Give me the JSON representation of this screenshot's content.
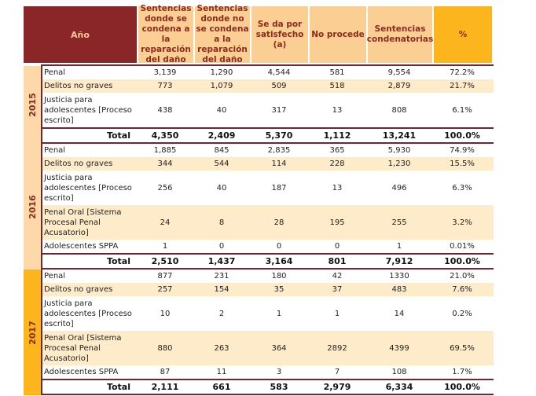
{
  "header": {
    "year": "Año",
    "col1": "Sentencias donde se condena a la reparación del daño",
    "col2": "Sentencias donde no se condena a la reparación del daño",
    "col3": "Se da por satisfecho (a)",
    "col4": "No procede",
    "col5": "Sentencias condenatorias",
    "col6": "%"
  },
  "colors": {
    "header_dark": "#8a2528",
    "header_light": "#fbcf94",
    "header_pct": "#fcb51d",
    "row_shade": "#fdebc9",
    "rule": "#6e2a2a"
  },
  "years": [
    {
      "year": "2015",
      "rows": [
        {
          "name": "Penal",
          "v": [
            "3,139",
            "1,290",
            "4,544",
            "581",
            "9,554",
            "72.2%"
          ]
        },
        {
          "name": "Delitos no graves",
          "v": [
            "773",
            "1,079",
            "509",
            "518",
            "2,879",
            "21.7%"
          ]
        },
        {
          "name": "Justicia para adolescentes [Proceso escrito]",
          "v": [
            "438",
            "40",
            "317",
            "13",
            "808",
            "6.1%"
          ]
        }
      ],
      "total": {
        "label": "Total",
        "v": [
          "4,350",
          "2,409",
          "5,370",
          "1,112",
          "13,241",
          "100.0%"
        ]
      }
    },
    {
      "year": "2016",
      "rows": [
        {
          "name": "Penal",
          "v": [
            "1,885",
            "845",
            "2,835",
            "365",
            "5,930",
            "74.9%"
          ]
        },
        {
          "name": "Delitos no graves",
          "v": [
            "344",
            "544",
            "114",
            "228",
            "1,230",
            "15.5%"
          ]
        },
        {
          "name": "Justicia para adolescentes [Proceso escrito]",
          "v": [
            "256",
            "40",
            "187",
            "13",
            "496",
            "6.3%"
          ]
        },
        {
          "name": "Penal Oral [Sistema Procesal Penal Acusatorio]",
          "v": [
            "24",
            "8",
            "28",
            "195",
            "255",
            "3.2%"
          ]
        },
        {
          "name": "Adolescentes SPPA",
          "v": [
            "1",
            "0",
            "0",
            "0",
            "1",
            "0.01%"
          ]
        }
      ],
      "total": {
        "label": "Total",
        "v": [
          "2,510",
          "1,437",
          "3,164",
          "801",
          "7,912",
          "100.0%"
        ]
      }
    },
    {
      "year": "2017",
      "rows": [
        {
          "name": "Penal",
          "v": [
            "877",
            "231",
            "180",
            "42",
            "1330",
            "21.0%"
          ]
        },
        {
          "name": "Delitos no graves",
          "v": [
            "257",
            "154",
            "35",
            "37",
            "483",
            "7.6%"
          ]
        },
        {
          "name": "Justicia para adolescentes [Proceso escrito]",
          "v": [
            "10",
            "2",
            "1",
            "1",
            "14",
            "0.2%"
          ]
        },
        {
          "name": "Penal Oral [Sistema Procesal Penal Acusatorio]",
          "v": [
            "880",
            "263",
            "364",
            "2892",
            "4399",
            "69.5%"
          ]
        },
        {
          "name": "Adolescentes SPPA",
          "v": [
            "87",
            "11",
            "3",
            "7",
            "108",
            "1.7%"
          ]
        }
      ],
      "total": {
        "label": "Total",
        "v": [
          "2,111",
          "661",
          "583",
          "2,979",
          "6,334",
          "100.0%"
        ]
      }
    }
  ]
}
